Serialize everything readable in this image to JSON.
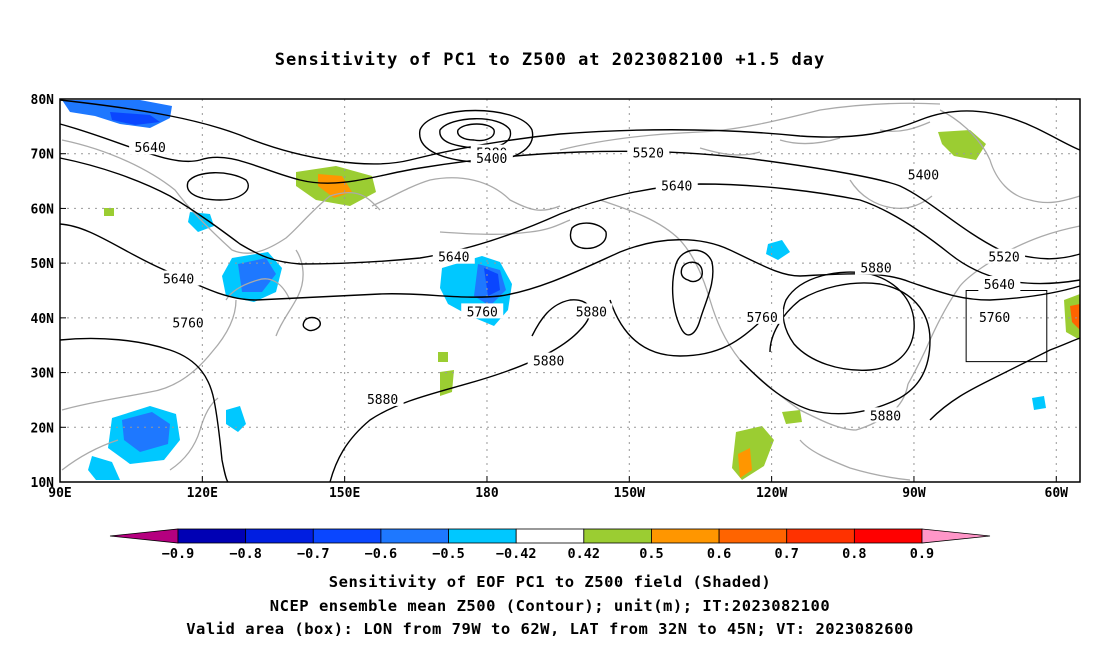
{
  "title": "Sensitivity of PC1 to Z500 at 2023082100 +1.5 day",
  "lat_labels": [
    "80N",
    "70N",
    "60N",
    "50N",
    "40N",
    "30N",
    "20N",
    "10N"
  ],
  "lon_labels": [
    "90E",
    "120E",
    "150E",
    "180",
    "150W",
    "120W",
    "90W",
    "60W"
  ],
  "map_extent": {
    "lon_west": 90,
    "lon_east": 305,
    "lat_south": 10,
    "lat_north": 80
  },
  "grid": true,
  "contour_labels": [
    {
      "text": "5640",
      "lon": 109,
      "lat": 71
    },
    {
      "text": "5280",
      "lon": 181,
      "lat": 70
    },
    {
      "text": "5400",
      "lon": 181,
      "lat": 69
    },
    {
      "text": "5520",
      "lon": 214,
      "lat": 70
    },
    {
      "text": "5640",
      "lon": 220,
      "lat": 64
    },
    {
      "text": "5400",
      "lon": 272,
      "lat": 66
    },
    {
      "text": "5640",
      "lon": 115,
      "lat": 47
    },
    {
      "text": "5640",
      "lon": 173,
      "lat": 51
    },
    {
      "text": "5760",
      "lon": 117,
      "lat": 39
    },
    {
      "text": "5760",
      "lon": 179,
      "lat": 41
    },
    {
      "text": "5880",
      "lon": 202,
      "lat": 41
    },
    {
      "text": "5760",
      "lon": 238,
      "lat": 40
    },
    {
      "text": "5880",
      "lon": 193,
      "lat": 32
    },
    {
      "text": "5880",
      "lon": 158,
      "lat": 25
    },
    {
      "text": "5880",
      "lon": 262,
      "lat": 49
    },
    {
      "text": "5520",
      "lon": 289,
      "lat": 51
    },
    {
      "text": "5640",
      "lon": 288,
      "lat": 46
    },
    {
      "text": "5760",
      "lon": 287,
      "lat": 40
    },
    {
      "text": "5880",
      "lon": 264,
      "lat": 22
    }
  ],
  "valid_box": {
    "lon_min": 281,
    "lon_max": 298,
    "lat_min": 32,
    "lat_max": 45
  },
  "colorbar": {
    "labels": [
      "-0.9",
      "-0.8",
      "-0.7",
      "-0.6",
      "-0.5",
      "-0.42",
      "0.42",
      "0.5",
      "0.6",
      "0.7",
      "0.8",
      "0.9"
    ],
    "colors": [
      "#b5007f",
      "#0000b4",
      "#001ee1",
      "#0a46ff",
      "#1e78ff",
      "#00c8ff",
      "#ffffff",
      "#9bcd32",
      "#ff9600",
      "#ff6400",
      "#ff3200",
      "#ff0000",
      "#ff96c8"
    ]
  },
  "captions": [
    "Sensitivity of EOF PC1 to Z500 field (Shaded)",
    "NCEP ensemble mean Z500 (Contour); unit(m); IT:2023082100",
    "Valid area (box): LON from 79W to 62W, LAT from 32N to 45N; VT: 2023082600"
  ]
}
